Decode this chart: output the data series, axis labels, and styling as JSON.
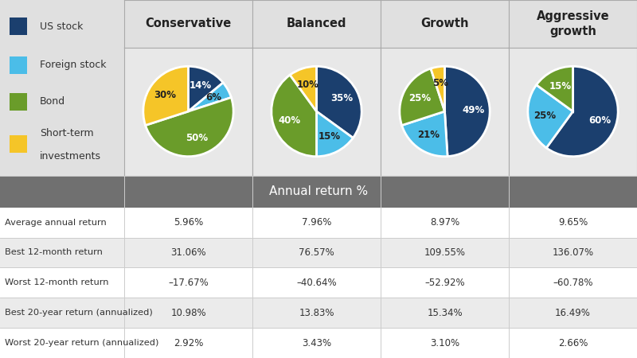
{
  "columns": [
    "Conservative",
    "Balanced",
    "Growth",
    "Aggressive\ngrowth"
  ],
  "legend_labels": [
    "US stock",
    "Foreign stock",
    "Bond",
    "Short-term\ninvestments"
  ],
  "colors": [
    "#1b3f6e",
    "#4bbde8",
    "#6a9c2a",
    "#f5c528"
  ],
  "pie_data": [
    [
      14,
      6,
      50,
      30
    ],
    [
      35,
      15,
      40,
      10
    ],
    [
      49,
      21,
      25,
      5
    ],
    [
      60,
      25,
      15,
      0
    ]
  ],
  "pie_labels": [
    [
      "14%",
      "6%",
      "50%",
      "30%"
    ],
    [
      "35%",
      "15%",
      "40%",
      "10%"
    ],
    [
      "49%",
      "21%",
      "25%",
      "5%"
    ],
    [
      "60%",
      "25%",
      "15%",
      ""
    ]
  ],
  "pie_label_colors": [
    [
      "white",
      "#222222",
      "white",
      "#222222"
    ],
    [
      "white",
      "#222222",
      "white",
      "#222222"
    ],
    [
      "white",
      "#222222",
      "white",
      "#222222"
    ],
    [
      "white",
      "#222222",
      "white",
      "#222222"
    ]
  ],
  "row_labels": [
    "Average annual return",
    "Best 12-month return",
    "Worst 12-month return",
    "Best 20-year return (annualized)",
    "Worst 20-year return (annualized)"
  ],
  "table_data": [
    [
      "5.96%",
      "7.96%",
      "8.97%",
      "9.65%"
    ],
    [
      "31.06%",
      "76.57%",
      "109.55%",
      "136.07%"
    ],
    [
      "–17.67%",
      "–40.64%",
      "–52.92%",
      "–60.78%"
    ],
    [
      "10.98%",
      "13.83%",
      "15.34%",
      "16.49%"
    ],
    [
      "2.92%",
      "3.43%",
      "3.10%",
      "2.66%"
    ]
  ],
  "annual_return_header": "Annual return %",
  "bg_color": "#e0e0e0",
  "header_bg": "#707070",
  "header_text_color": "#ffffff",
  "table_text_color": "#333333",
  "row_colors": [
    "#f5f5f5",
    "#e8e8e8"
  ],
  "grid_line_color": "#cccccc",
  "pie_cell_bg": "#e8e8e8",
  "legend_text_color": "#333333"
}
